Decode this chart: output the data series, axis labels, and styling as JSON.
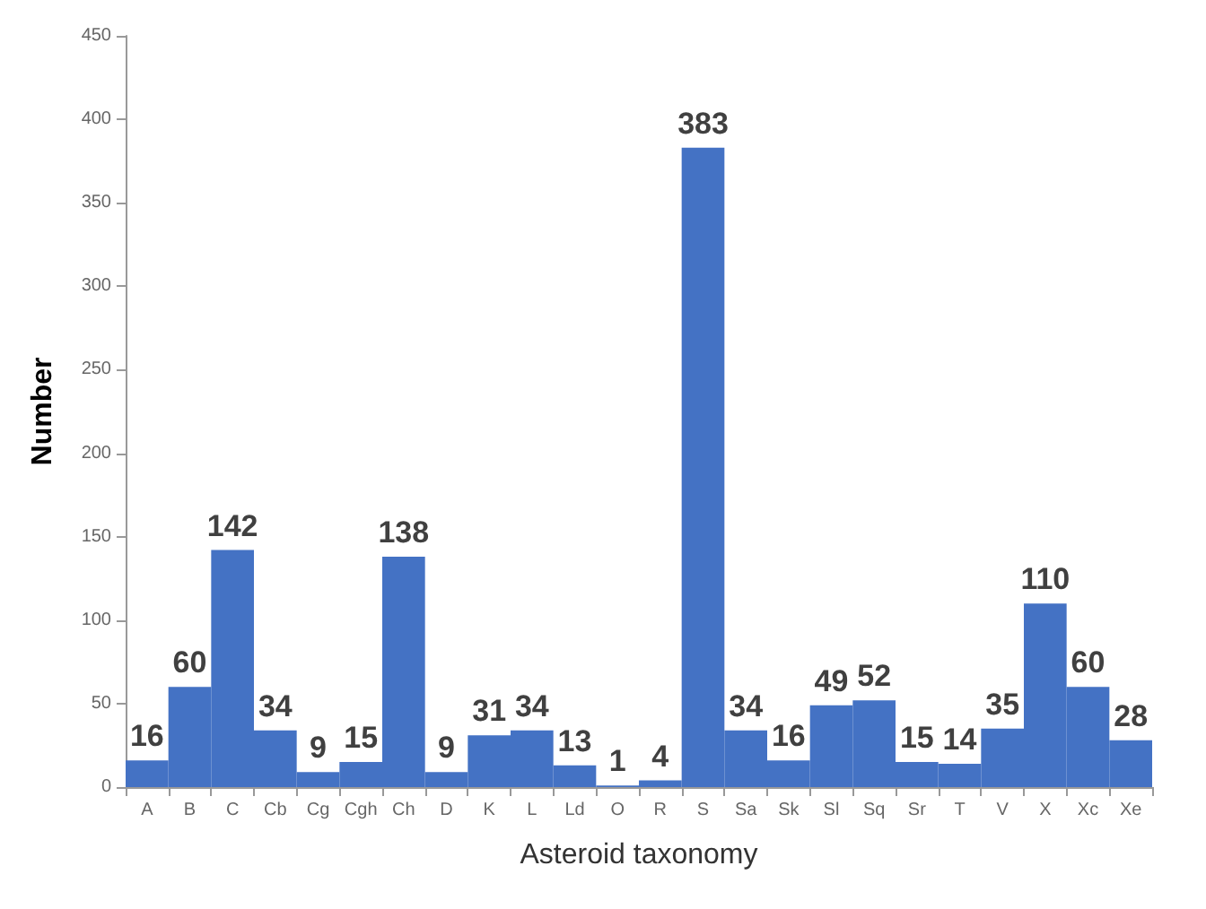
{
  "chart_data": {
    "type": "bar",
    "xlabel": "Asteroid taxonomy",
    "ylabel": "Number",
    "categories": [
      "A",
      "B",
      "C",
      "Cb",
      "Cg",
      "Cgh",
      "Ch",
      "D",
      "K",
      "L",
      "Ld",
      "O",
      "R",
      "S",
      "Sa",
      "Sk",
      "Sl",
      "Sq",
      "Sr",
      "T",
      "V",
      "X",
      "Xc",
      "Xe"
    ],
    "values": [
      16,
      60,
      142,
      34,
      9,
      15,
      138,
      9,
      31,
      34,
      13,
      1,
      4,
      383,
      34,
      16,
      49,
      52,
      15,
      14,
      35,
      110,
      60,
      28
    ],
    "color": "#4472c4",
    "ylim": [
      0,
      450
    ],
    "yticks": [
      0,
      50,
      100,
      150,
      200,
      250,
      300,
      350,
      400,
      450
    ],
    "grid": false,
    "data_labels": true
  }
}
